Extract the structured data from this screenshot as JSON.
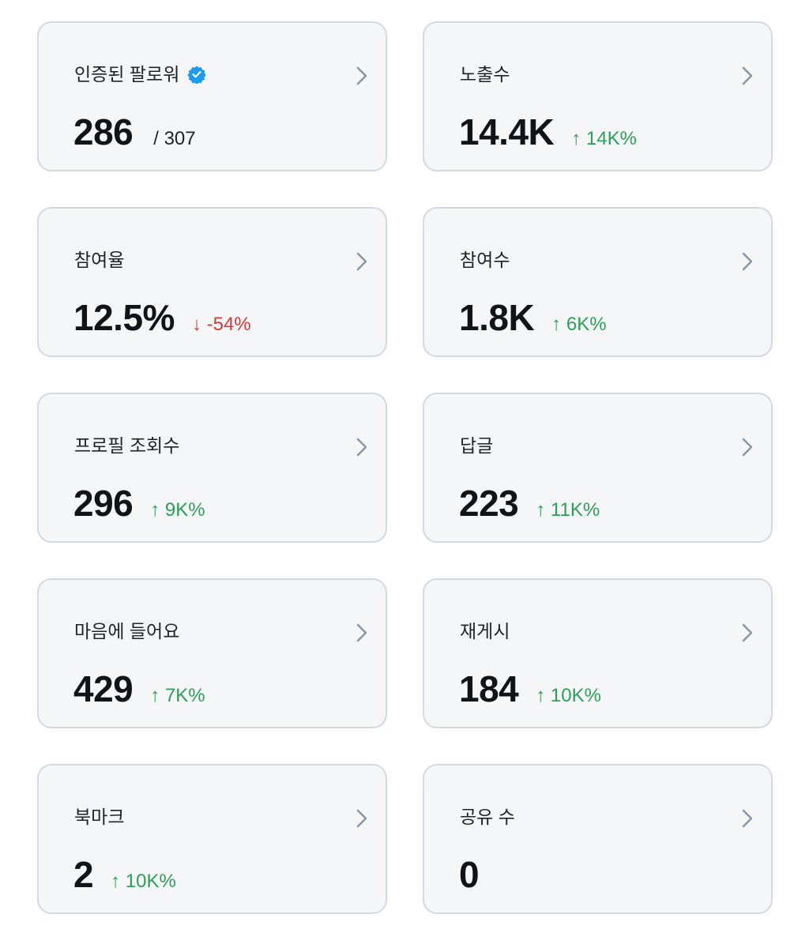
{
  "colors": {
    "up": "#2e9e5b",
    "down": "#d23b3b",
    "verified": "#1d9bf0",
    "chevron": "#8b98a5"
  },
  "cards": [
    {
      "label": "인증된 팔로워",
      "value": "286",
      "sub": "/ 307",
      "change": "",
      "direction": "",
      "verified": true
    },
    {
      "label": "노출수",
      "value": "14.4K",
      "sub": "",
      "change": "↑ 14K%",
      "direction": "up",
      "verified": false
    },
    {
      "label": "참여율",
      "value": "12.5%",
      "sub": "",
      "change": "↓ -54%",
      "direction": "down",
      "verified": false
    },
    {
      "label": "참여수",
      "value": "1.8K",
      "sub": "",
      "change": "↑ 6K%",
      "direction": "up",
      "verified": false
    },
    {
      "label": "프로필 조회수",
      "value": "296",
      "sub": "",
      "change": "↑ 9K%",
      "direction": "up",
      "verified": false
    },
    {
      "label": "답글",
      "value": "223",
      "sub": "",
      "change": "↑ 11K%",
      "direction": "up",
      "verified": false
    },
    {
      "label": "마음에 들어요",
      "value": "429",
      "sub": "",
      "change": "↑ 7K%",
      "direction": "up",
      "verified": false
    },
    {
      "label": "재게시",
      "value": "184",
      "sub": "",
      "change": "↑ 10K%",
      "direction": "up",
      "verified": false
    },
    {
      "label": "북마크",
      "value": "2",
      "sub": "",
      "change": "↑ 10K%",
      "direction": "up",
      "verified": false
    },
    {
      "label": "공유 수",
      "value": "0",
      "sub": "",
      "change": "",
      "direction": "",
      "verified": false
    }
  ]
}
